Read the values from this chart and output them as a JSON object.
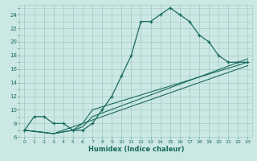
{
  "xlabel": "Humidex (Indice chaleur)",
  "bg_color": "#cce8e4",
  "grid_color": "#a8cdc8",
  "line_color": "#1a6b60",
  "xlim": [
    -0.5,
    23.5
  ],
  "ylim": [
    6,
    25.5
  ],
  "yticks": [
    6,
    8,
    10,
    12,
    14,
    16,
    18,
    20,
    22,
    24
  ],
  "xtick_labels": [
    "0",
    "1",
    "2",
    "3",
    "4",
    "5",
    "6",
    "7",
    "8",
    "9",
    "10",
    "11",
    "12",
    "13",
    "14",
    "15",
    "16",
    "17",
    "18",
    "19",
    "20",
    "21",
    "22",
    "23"
  ],
  "main_line": {
    "x": [
      0,
      1,
      2,
      3,
      4,
      5,
      6,
      7,
      8,
      9,
      10,
      11,
      12,
      13,
      14,
      15,
      16,
      17,
      18,
      19,
      20,
      21,
      22,
      23
    ],
    "y": [
      7,
      9,
      9,
      8,
      8,
      7,
      7,
      8,
      10,
      12,
      15,
      18,
      23,
      23,
      24,
      25,
      24,
      23,
      21,
      20,
      18,
      17,
      17,
      17
    ]
  },
  "extra_lines": [
    {
      "x": [
        0,
        3,
        5,
        6,
        7,
        23
      ],
      "y": [
        7,
        6.5,
        7,
        7.5,
        9,
        17.5
      ]
    },
    {
      "x": [
        0,
        3,
        5,
        6,
        7,
        23
      ],
      "y": [
        7,
        6.5,
        7,
        8,
        10,
        17
      ]
    },
    {
      "x": [
        0,
        3,
        4,
        5,
        23
      ],
      "y": [
        7,
        6.5,
        7,
        7.5,
        16.5
      ]
    }
  ]
}
